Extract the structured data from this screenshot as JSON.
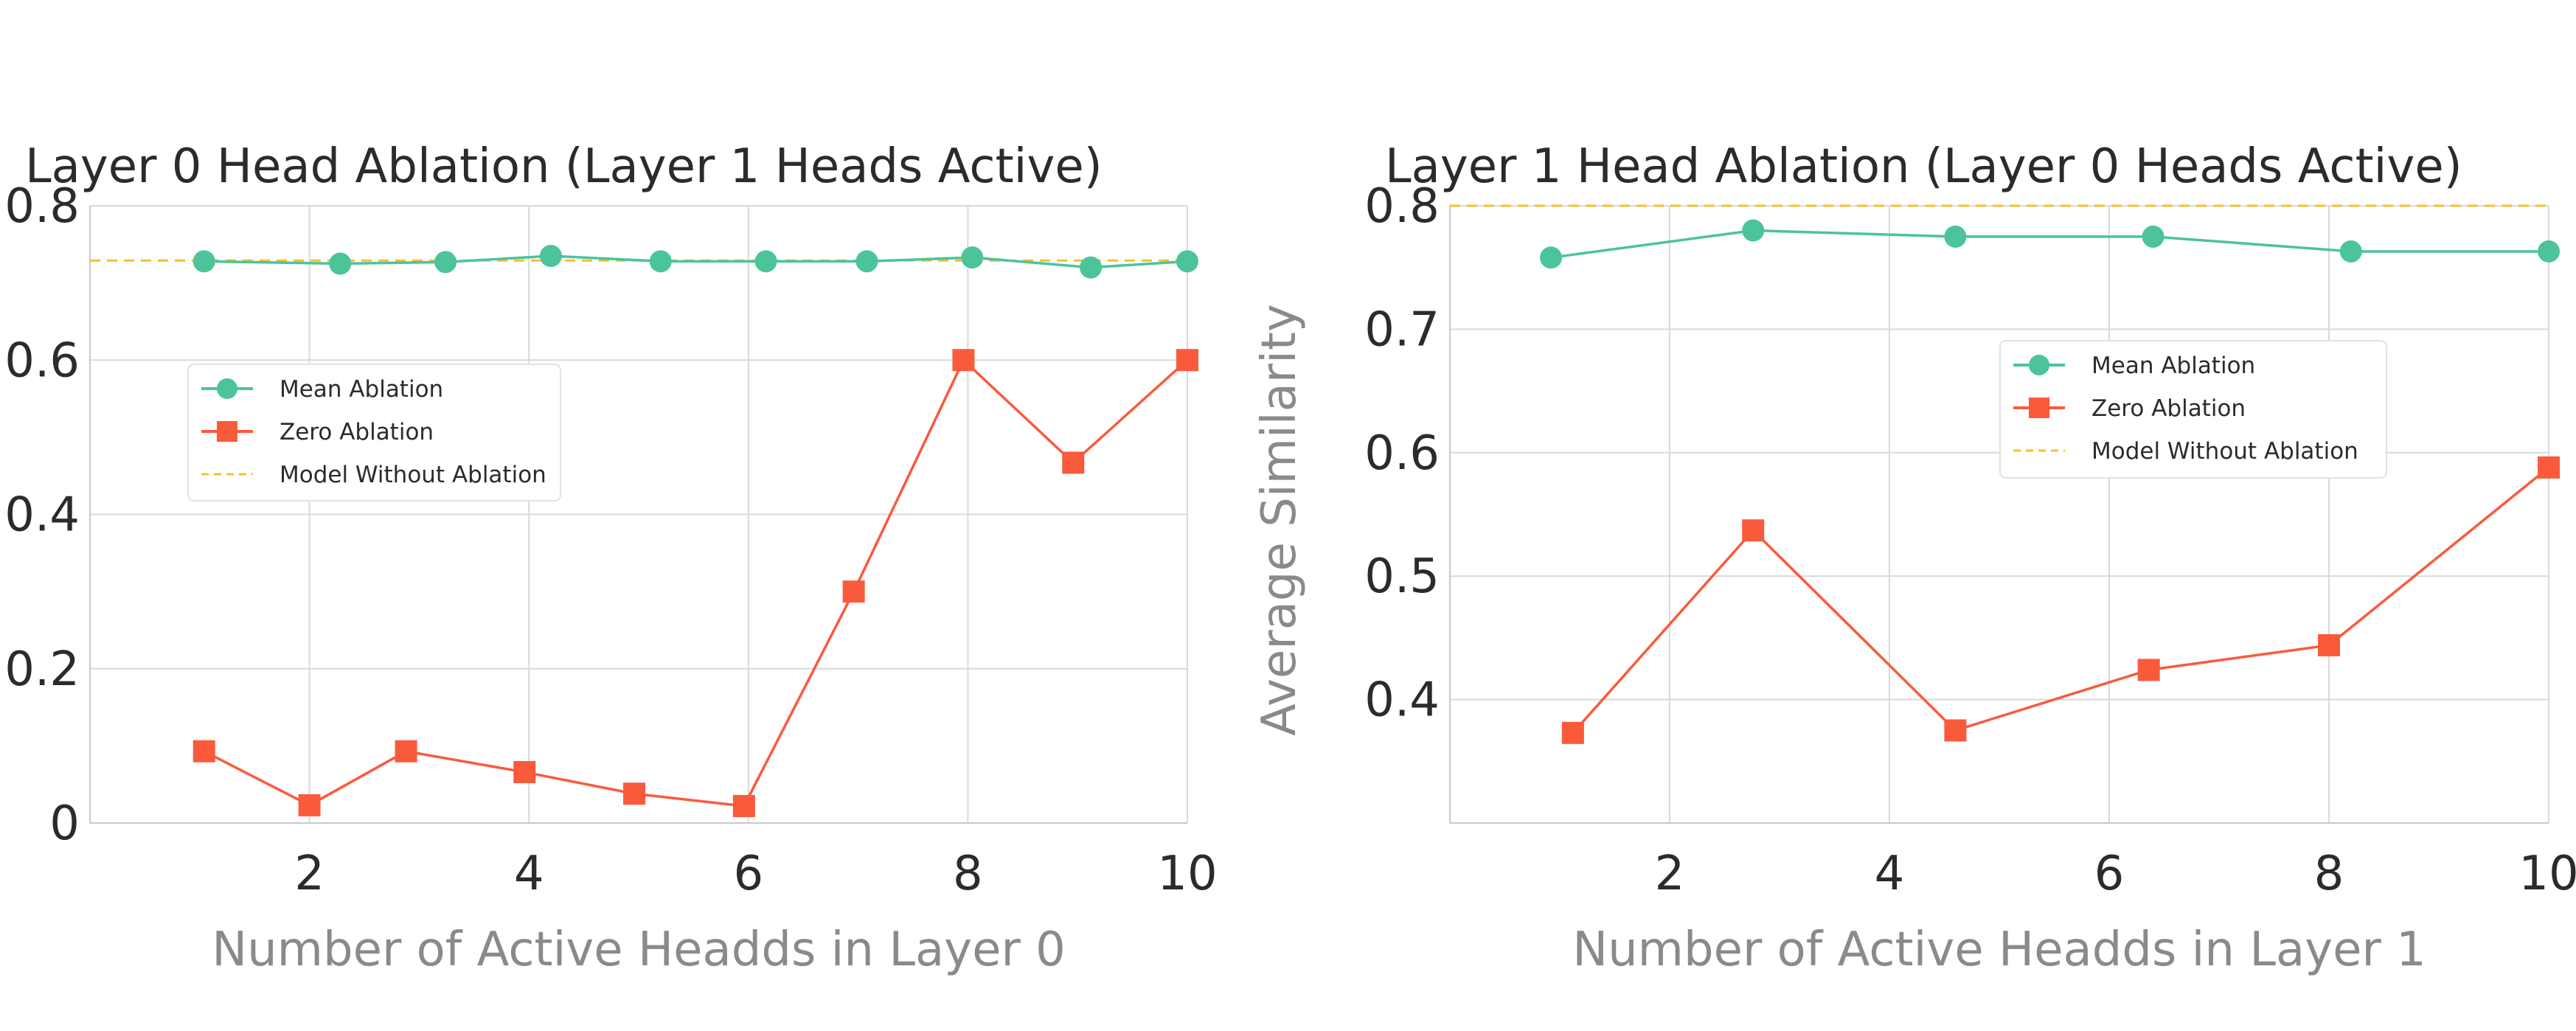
{
  "ylabel": "Average Similarity",
  "legend_labels": {
    "mean": "Mean Ablation",
    "zero": "Zero Ablation",
    "baseline": "Model Without Ablation"
  },
  "colors": {
    "mean": "#4bc499",
    "zero": "#fa5a3c",
    "baseline": "#f5c02a",
    "grid": "#d9d9d9",
    "axis": "#c8c8c8"
  },
  "chart_data": [
    {
      "type": "line",
      "title": "Layer 0 Head Ablation (Layer 1 Heads Active)",
      "xlabel": "Number of Active Headds in Layer 0",
      "ylabel": "Average Similarity",
      "xlim": [
        0,
        10
      ],
      "ylim": [
        0,
        0.8
      ],
      "xticks": [
        2,
        4,
        6,
        8,
        10
      ],
      "yticks": [
        0,
        0.2,
        0.4,
        0.6,
        0.8
      ],
      "xtick_labels": [
        "2",
        "4",
        "6",
        "8",
        "10"
      ],
      "ytick_labels": [
        "0",
        "0.2",
        "0.4",
        "0.6",
        "0.8"
      ],
      "grid": true,
      "legend": "center-left",
      "series": [
        {
          "name": "Mean Ablation",
          "marker": "circle",
          "x": [
            1.04,
            2.28,
            3.24,
            4.2,
            5.2,
            6.16,
            7.08,
            8.04,
            9.12,
            10
          ],
          "y": [
            0.728,
            0.725,
            0.727,
            0.735,
            0.728,
            0.728,
            0.728,
            0.733,
            0.72,
            0.728
          ]
        },
        {
          "name": "Zero Ablation",
          "marker": "square",
          "x": [
            1.04,
            2,
            2.88,
            3.96,
            4.96,
            5.96,
            6.96,
            7.96,
            8.96,
            10
          ],
          "y": [
            0.093,
            0.023,
            0.093,
            0.066,
            0.038,
            0.022,
            0.3,
            0.6,
            0.467,
            0.6
          ]
        },
        {
          "name": "Model Without Ablation",
          "style": "dashed",
          "constant": 0.729
        }
      ]
    },
    {
      "type": "line",
      "title": "Layer 1 Head Ablation (Layer 0 Heads Active)",
      "xlabel": "Number of Active Headds in Layer 1",
      "ylabel": "Average Similarity",
      "xlim": [
        0,
        10
      ],
      "ylim": [
        0.3,
        0.8
      ],
      "xticks": [
        2,
        4,
        6,
        8,
        10
      ],
      "yticks": [
        0.4,
        0.5,
        0.6,
        0.7,
        0.8
      ],
      "xtick_labels": [
        "2",
        "4",
        "6",
        "8",
        "10"
      ],
      "ytick_labels": [
        "0.4",
        "0.5",
        "0.6",
        "0.7",
        "0.8"
      ],
      "grid": true,
      "legend": "center-right",
      "series": [
        {
          "name": "Mean Ablation",
          "marker": "circle",
          "x": [
            0.92,
            2.76,
            4.6,
            6.4,
            8.2,
            10
          ],
          "y": [
            0.758,
            0.78,
            0.775,
            0.775,
            0.763,
            0.763
          ]
        },
        {
          "name": "Zero Ablation",
          "marker": "square",
          "x": [
            1.12,
            2.76,
            4.6,
            6.36,
            8,
            10
          ],
          "y": [
            0.373,
            0.537,
            0.375,
            0.424,
            0.444,
            0.588
          ]
        },
        {
          "name": "Model Without Ablation",
          "style": "dashed",
          "constant": 0.8
        }
      ]
    }
  ]
}
